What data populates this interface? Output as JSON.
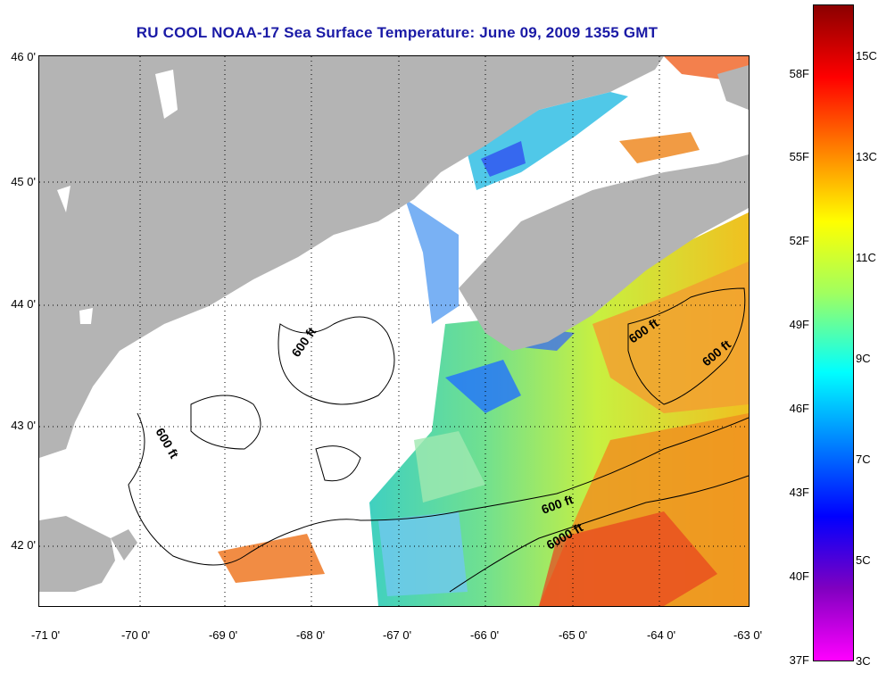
{
  "title": "RU COOL  NOAA-17  Sea Surface Temperature:  June 09, 2009 1355 GMT",
  "lat_labels": [
    "46 0'",
    "45 0'",
    "44 0'",
    "43 0'",
    "42 0'"
  ],
  "lon_labels": [
    "-71 0'",
    "-70 0'",
    "-69 0'",
    "-68 0'",
    "-67 0'",
    "-66 0'",
    "-65 0'",
    "-64 0'",
    "-63 0'"
  ],
  "contour_labels": [
    "600 ft",
    "600 ft",
    "600 ft",
    "600 ft",
    "600 ft",
    "6000 ft"
  ],
  "colorbar": {
    "fahrenheit": [
      "58F",
      "55F",
      "52F",
      "49F",
      "46F",
      "43F",
      "40F",
      "37F"
    ],
    "celsius": [
      "15C",
      "13C",
      "11C",
      "9C",
      "7C",
      "5C",
      "3C"
    ],
    "colors": [
      "#8b0000",
      "#ff0000",
      "#ff8000",
      "#ffff00",
      "#a0ff60",
      "#00ffff",
      "#0080ff",
      "#0000ff",
      "#8000c0",
      "#ff00ff"
    ]
  },
  "colors": {
    "land": "#b4b4b4",
    "cloud": "#ffffff",
    "title": "#1a1aa6"
  }
}
